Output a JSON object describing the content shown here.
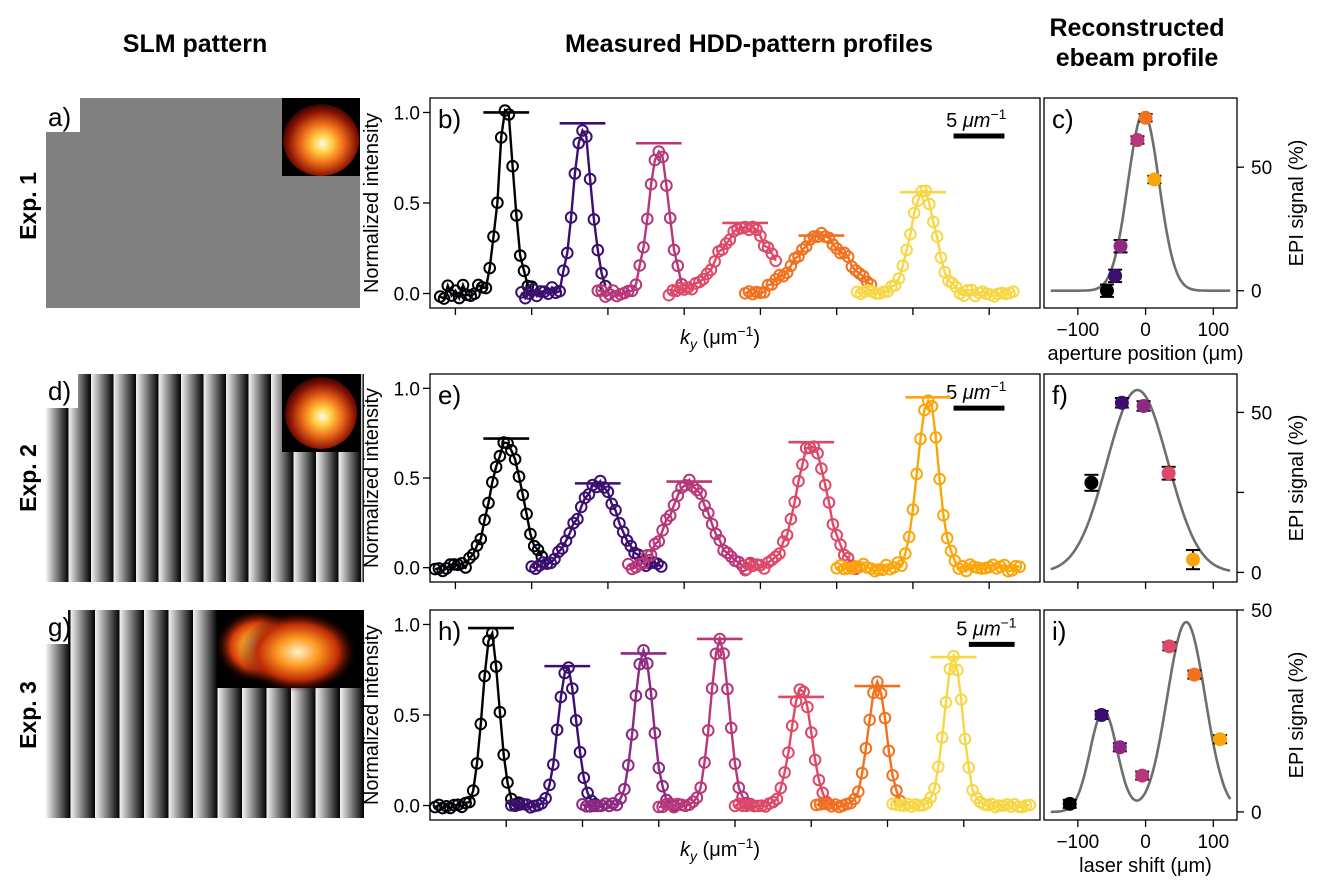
{
  "titles": {
    "slm": "SLM pattern",
    "measured": "Measured HDD-pattern profiles",
    "reconstructed_line1": "Reconstructed",
    "reconstructed_line2": "ebeam profile"
  },
  "rows": [
    {
      "label": "Exp. 1",
      "slm_label": "a)",
      "hdd_label": "b)",
      "rec_label": "c)"
    },
    {
      "label": "Exp. 2",
      "slm_label": "d)",
      "hdd_label": "e)",
      "rec_label": "f)"
    },
    {
      "label": "Exp. 3",
      "slm_label": "g)",
      "hdd_label": "h)",
      "rec_label": "i)"
    }
  ],
  "palette": {
    "c0": "#000004",
    "c1": "#3b0f70",
    "c2": "#8c2981",
    "c3": "#b73779",
    "c4": "#de4968",
    "c5": "#f1711f",
    "c6": "#fca50a",
    "c7": "#f6d746",
    "model": "#6e6e6e",
    "slm_gray": "#808080"
  },
  "chart_data": [
    {
      "panel": "b",
      "type": "line",
      "xlabel_base": "k",
      "xlabel_sub": "y",
      "xlabel_unit": " (μm",
      "xlabel_exp": "−1",
      "xlabel_close": ")",
      "ylabel": "Normalized intensity",
      "ylim": [
        -0.08,
        1.08
      ],
      "xlim": [
        0,
        120
      ],
      "yticks": [
        0.0,
        0.5,
        1.0
      ],
      "yticklabels": [
        "0.0",
        "0.5",
        "1.0"
      ],
      "xticks": [
        5,
        20,
        35,
        50,
        65,
        80,
        95,
        110
      ],
      "scale_bar": {
        "text_num": "5 ",
        "text_unit": "μm",
        "text_exp": "−1",
        "length": 10,
        "x_end": 113,
        "y": 0.87
      },
      "series": [
        {
          "name": "s0",
          "color": "c0",
          "center": 15,
          "amp": 1.0,
          "width": 1.6,
          "xmin": 2,
          "xmax": 20,
          "bar": 1.0,
          "noise": 0.05
        },
        {
          "name": "s1",
          "color": "c1",
          "center": 30,
          "amp": 0.93,
          "width": 1.8,
          "xmin": 18,
          "xmax": 35,
          "bar": 0.94,
          "noise": 0.03
        },
        {
          "name": "s2",
          "color": "c3",
          "center": 45,
          "amp": 0.8,
          "width": 2.0,
          "xmin": 33,
          "xmax": 50,
          "bar": 0.83,
          "noise": 0.02
        },
        {
          "name": "s3",
          "color": "c4",
          "center": 62,
          "amp": 0.37,
          "width": 5.0,
          "xmin": 47,
          "xmax": 68,
          "bar": 0.39,
          "noise": 0.02
        },
        {
          "name": "s4",
          "color": "c5",
          "center": 77,
          "amp": 0.32,
          "width": 5.0,
          "xmin": 62,
          "xmax": 87,
          "bar": 0.32,
          "noise": 0.02
        },
        {
          "name": "s5",
          "color": "c7",
          "center": 97,
          "amp": 0.56,
          "width": 2.5,
          "xmin": 84,
          "xmax": 115,
          "bar": 0.56,
          "noise": 0.02
        }
      ]
    },
    {
      "panel": "c",
      "type": "scatter",
      "xlabel": "aperture position (μm)",
      "ylabel": "EPI signal (%)",
      "xlim": [
        -150,
        135
      ],
      "ylim": [
        -7,
        78
      ],
      "xticks": [
        -100,
        0,
        100
      ],
      "xticklabels": [
        "−100",
        "0",
        "100"
      ],
      "yticks": [
        0,
        50
      ],
      "yticklabels": [
        "0",
        "50"
      ],
      "model": {
        "type": "gauss",
        "amp": 72,
        "center": -3,
        "sigma": 23
      },
      "points": [
        {
          "x": -57,
          "y": 0,
          "err": 2.5,
          "color": "c0"
        },
        {
          "x": -45,
          "y": 6,
          "err": 2.5,
          "color": "c1"
        },
        {
          "x": -37,
          "y": 18,
          "err": 2.5,
          "color": "c2"
        },
        {
          "x": -12,
          "y": 61,
          "err": 1.5,
          "color": "c3"
        },
        {
          "x": 0,
          "y": 70,
          "err": 1.5,
          "color": "c5"
        },
        {
          "x": 13,
          "y": 45,
          "err": 1.5,
          "color": "c6"
        }
      ]
    },
    {
      "panel": "e",
      "type": "line",
      "xlabel_base": "",
      "ylabel": "Normalized intensity",
      "ylim": [
        -0.08,
        1.08
      ],
      "xlim": [
        0,
        120
      ],
      "yticks": [
        0.0,
        0.5,
        1.0
      ],
      "yticklabels": [
        "0.0",
        "0.5",
        "1.0"
      ],
      "xticks": [
        5,
        20,
        35,
        50,
        65,
        80,
        95,
        110
      ],
      "scale_bar": {
        "text_num": "5 ",
        "text_unit": "μm",
        "text_exp": "−1",
        "length": 10,
        "x_end": 113,
        "y": 0.89
      },
      "series": [
        {
          "name": "s0",
          "color": "c0",
          "center": 15,
          "amp": 0.7,
          "width": 3.0,
          "xmin": 1,
          "xmax": 22,
          "bar": 0.72,
          "noise": 0.02
        },
        {
          "name": "s1",
          "color": "c1",
          "center": 33,
          "amp": 0.47,
          "width": 4.0,
          "xmin": 20,
          "xmax": 46,
          "bar": 0.47,
          "noise": 0.02
        },
        {
          "name": "s2",
          "color": "c3",
          "center": 51,
          "amp": 0.48,
          "width": 4.0,
          "xmin": 39,
          "xmax": 63,
          "bar": 0.48,
          "noise": 0.02
        },
        {
          "name": "s3",
          "color": "c4",
          "center": 75,
          "amp": 0.69,
          "width": 3.0,
          "xmin": 62,
          "xmax": 84,
          "bar": 0.7,
          "noise": 0.02
        },
        {
          "name": "s4",
          "color": "c6",
          "center": 98,
          "amp": 0.95,
          "width": 2.0,
          "xmin": 80,
          "xmax": 116,
          "bar": 0.95,
          "noise": 0.02
        }
      ]
    },
    {
      "panel": "f",
      "type": "scatter",
      "xlabel": "",
      "ylabel": "EPI signal (%)",
      "xlim": [
        -150,
        135
      ],
      "ylim": [
        -3,
        62
      ],
      "xticks": [
        -100,
        0,
        100
      ],
      "xticklabels": [
        "",
        "",
        ""
      ],
      "yticks": [
        0,
        25,
        50
      ],
      "yticklabels": [
        "0",
        "",
        "50"
      ],
      "model": {
        "type": "gauss",
        "amp": 57,
        "center": -12,
        "sigma": 45
      },
      "points": [
        {
          "x": -80,
          "y": 28,
          "err": 2.5,
          "color": "c0"
        },
        {
          "x": -35,
          "y": 53,
          "err": 1.5,
          "color": "c1"
        },
        {
          "x": -3,
          "y": 52,
          "err": 1.5,
          "color": "c2"
        },
        {
          "x": 34,
          "y": 31,
          "err": 2.0,
          "color": "c4"
        },
        {
          "x": 70,
          "y": 4,
          "err": 3.0,
          "color": "c6"
        }
      ]
    },
    {
      "panel": "h",
      "type": "line",
      "xlabel_base": "k",
      "xlabel_sub": "y",
      "xlabel_unit": " (μm",
      "xlabel_exp": "−1",
      "xlabel_close": ")",
      "ylabel": "Normalized intensity",
      "ylim": [
        -0.08,
        1.08
      ],
      "xlim": [
        0,
        120
      ],
      "yticks": [
        0.0,
        0.5,
        1.0
      ],
      "yticklabels": [
        "0.0",
        "0.5",
        "1.0"
      ],
      "xticks": [
        15,
        30,
        45,
        60,
        75,
        90,
        105
      ],
      "scale_bar": {
        "text_num": "5 ",
        "text_unit": "μm",
        "text_exp": "−1",
        "length": 9,
        "x_end": 115,
        "y": 0.89
      },
      "series": [
        {
          "name": "s0",
          "color": "c0",
          "center": 12,
          "amp": 0.95,
          "width": 1.6,
          "xmin": 1,
          "xmax": 18,
          "bar": 0.98,
          "noise": 0.02
        },
        {
          "name": "s1",
          "color": "c1",
          "center": 27,
          "amp": 0.76,
          "width": 1.8,
          "xmin": 16,
          "xmax": 33,
          "bar": 0.77,
          "noise": 0.01
        },
        {
          "name": "s2",
          "color": "c2",
          "center": 42,
          "amp": 0.86,
          "width": 1.8,
          "xmin": 30,
          "xmax": 48,
          "bar": 0.84,
          "noise": 0.01
        },
        {
          "name": "s3",
          "color": "c3",
          "center": 57,
          "amp": 0.92,
          "width": 1.8,
          "xmin": 45,
          "xmax": 63,
          "bar": 0.92,
          "noise": 0.01
        },
        {
          "name": "s4",
          "color": "c4",
          "center": 73,
          "amp": 0.65,
          "width": 2.0,
          "xmin": 60,
          "xmax": 78,
          "bar": 0.6,
          "noise": 0.01
        },
        {
          "name": "s5",
          "color": "c5",
          "center": 88,
          "amp": 0.68,
          "width": 1.8,
          "xmin": 76,
          "xmax": 93,
          "bar": 0.66,
          "noise": 0.01
        },
        {
          "name": "s6",
          "color": "c7",
          "center": 103,
          "amp": 0.82,
          "width": 1.8,
          "xmin": 91,
          "xmax": 118,
          "bar": 0.82,
          "noise": 0.01
        }
      ]
    },
    {
      "panel": "i",
      "type": "scatter",
      "xlabel": "laser shift (μm)",
      "ylabel": "EPI signal (%)",
      "xlim": [
        -150,
        135
      ],
      "ylim": [
        -2,
        50
      ],
      "xticks": [
        -100,
        0,
        100
      ],
      "xticklabels": [
        "−100",
        "0",
        "100"
      ],
      "yticks": [
        0,
        50
      ],
      "yticklabels": [
        "0",
        "50"
      ],
      "model": {
        "type": "double",
        "a1": 25,
        "c1": -62,
        "s1": 20,
        "a2": 47,
        "c2": 60,
        "s2": 28
      },
      "points": [
        {
          "x": -112,
          "y": 2,
          "err": 1.0,
          "color": "c0"
        },
        {
          "x": -65,
          "y": 24,
          "err": 1.0,
          "color": "c1"
        },
        {
          "x": -38,
          "y": 16,
          "err": 1.0,
          "color": "c2"
        },
        {
          "x": -5,
          "y": 9,
          "err": 1.0,
          "color": "c3"
        },
        {
          "x": 35,
          "y": 41,
          "err": 1.0,
          "color": "c4"
        },
        {
          "x": 72,
          "y": 34,
          "err": 1.0,
          "color": "c5"
        },
        {
          "x": 110,
          "y": 18,
          "err": 1.0,
          "color": "c6"
        }
      ]
    }
  ]
}
